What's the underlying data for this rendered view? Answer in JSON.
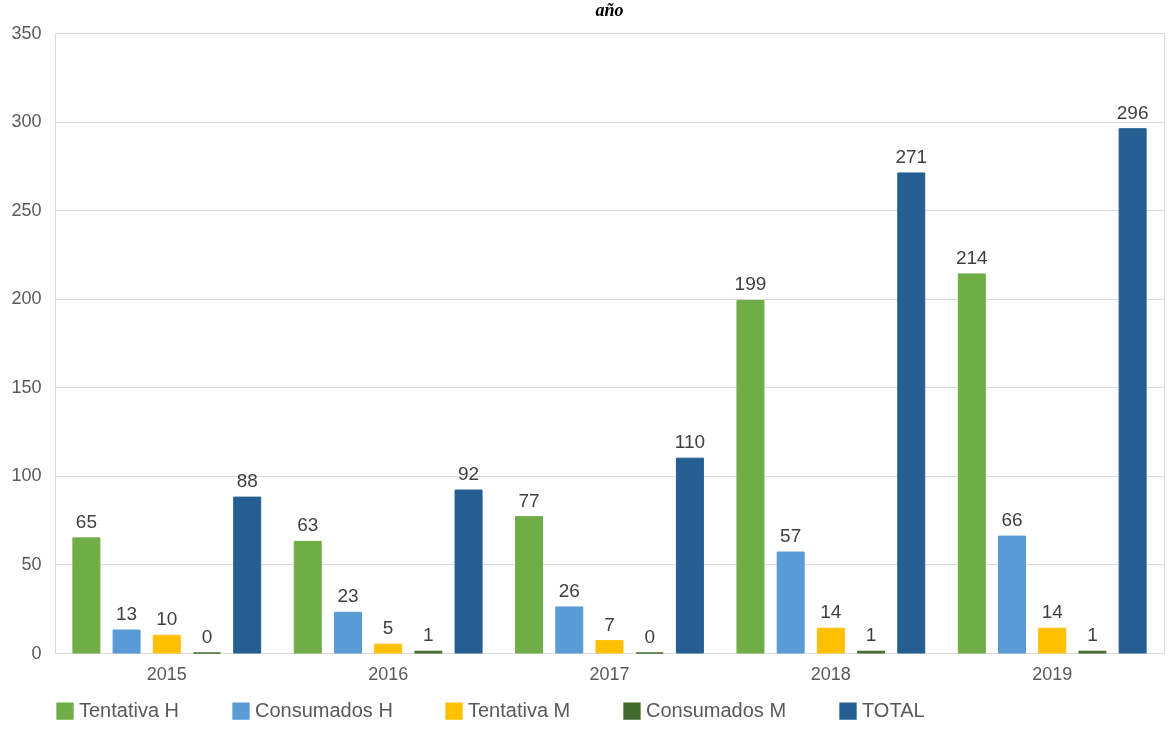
{
  "chart_data": {
    "type": "bar",
    "title": "año",
    "categories": [
      "2015",
      "2016",
      "2017",
      "2018",
      "2019"
    ],
    "series": [
      {
        "name": "Tentativa H",
        "color": "#70ad47",
        "values": [
          65,
          63,
          77,
          199,
          214
        ]
      },
      {
        "name": "Consumados H",
        "color": "#5b9bd5",
        "values": [
          13,
          23,
          26,
          57,
          66
        ]
      },
      {
        "name": "Tentativa M",
        "color": "#ffc000",
        "values": [
          10,
          5,
          7,
          14,
          14
        ]
      },
      {
        "name": "Consumados M",
        "color": "#43682b",
        "values": [
          0,
          1,
          0,
          1,
          1
        ]
      },
      {
        "name": "TOTAL",
        "color": "#255e91",
        "values": [
          88,
          92,
          110,
          271,
          296
        ]
      }
    ],
    "ylim": [
      0,
      350
    ],
    "yticks": [
      0,
      50,
      100,
      150,
      200,
      250,
      300,
      350
    ],
    "grid": "y",
    "legend": "bottom",
    "data_labels": true
  }
}
